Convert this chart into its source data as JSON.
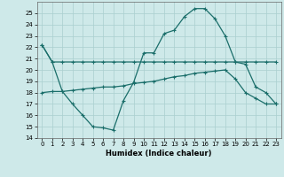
{
  "xlabel": "Humidex (Indice chaleur)",
  "xlim": [
    -0.5,
    23.5
  ],
  "ylim": [
    14,
    26
  ],
  "yticks": [
    14,
    15,
    16,
    17,
    18,
    19,
    20,
    21,
    22,
    23,
    24,
    25
  ],
  "xticks": [
    0,
    1,
    2,
    3,
    4,
    5,
    6,
    7,
    8,
    9,
    10,
    11,
    12,
    13,
    14,
    15,
    16,
    17,
    18,
    19,
    20,
    21,
    22,
    23
  ],
  "bg_color": "#cee9e9",
  "line_color": "#1a6e6a",
  "grid_color": "#aacfcf",
  "curve1_x": [
    0,
    1,
    2,
    3,
    4,
    5,
    6,
    7,
    8,
    9,
    10,
    11,
    12,
    13,
    14,
    15,
    16,
    17,
    18,
    19,
    20,
    21,
    22,
    23
  ],
  "curve1_y": [
    22.2,
    20.7,
    20.7,
    20.7,
    20.7,
    20.7,
    20.7,
    20.7,
    20.7,
    20.7,
    20.7,
    20.7,
    20.7,
    20.7,
    20.7,
    20.7,
    20.7,
    20.7,
    20.7,
    20.7,
    20.7,
    20.7,
    20.7,
    20.7
  ],
  "curve2_x": [
    0,
    1,
    2,
    3,
    4,
    5,
    6,
    7,
    8,
    9,
    10,
    11,
    12,
    13,
    14,
    15,
    16,
    17,
    18,
    19,
    20,
    21,
    22,
    23
  ],
  "curve2_y": [
    22.2,
    20.7,
    18.1,
    17.0,
    16.0,
    15.0,
    14.9,
    14.7,
    17.3,
    18.9,
    21.5,
    21.5,
    23.2,
    23.5,
    24.7,
    25.4,
    25.4,
    24.5,
    23.0,
    20.7,
    20.5,
    18.5,
    18.0,
    17.0
  ],
  "curve3_x": [
    0,
    1,
    2,
    3,
    4,
    5,
    6,
    7,
    8,
    9,
    10,
    11,
    12,
    13,
    14,
    15,
    16,
    17,
    18,
    19,
    20,
    21,
    22,
    23
  ],
  "curve3_y": [
    18.0,
    18.1,
    18.1,
    18.2,
    18.3,
    18.4,
    18.5,
    18.5,
    18.6,
    18.8,
    18.9,
    19.0,
    19.2,
    19.4,
    19.5,
    19.7,
    19.8,
    19.9,
    20.0,
    19.2,
    18.0,
    17.5,
    17.0,
    17.0
  ]
}
